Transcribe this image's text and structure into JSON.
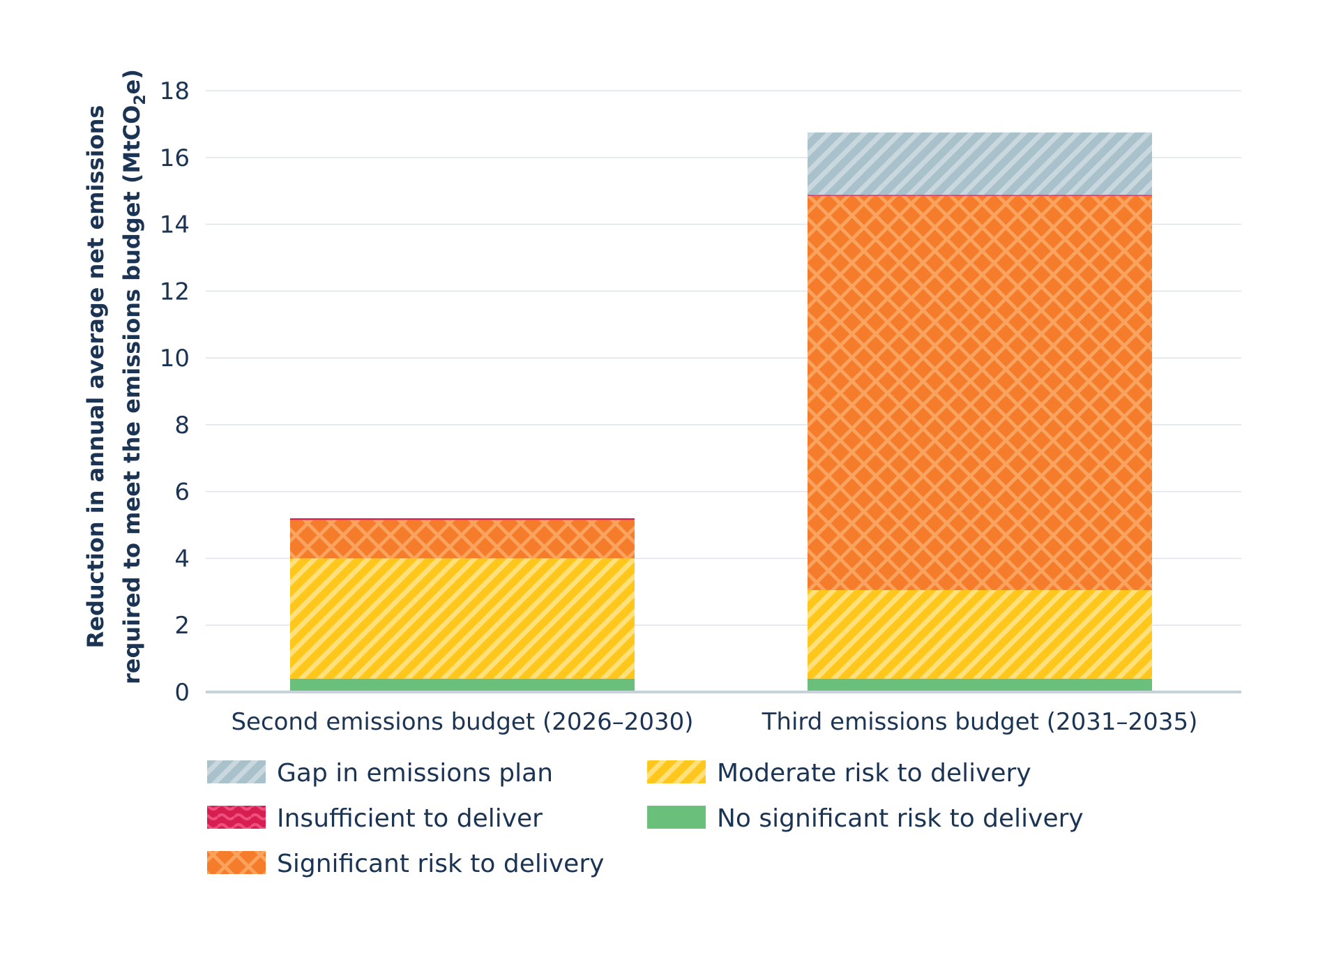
{
  "chart_data": {
    "type": "bar",
    "stacked": true,
    "categories": [
      "Second emissions budget (2026–2030)",
      "Third emissions budget (2031–2035)"
    ],
    "ylabel_line1": "Reduction in annual average net emissions",
    "ylabel_line2_prefix": "required to meet the emissions budget (MtCO",
    "ylabel_subscript": "2",
    "ylabel_line2_suffix": "e)",
    "ylim": [
      0,
      18
    ],
    "yticks": [
      0,
      2,
      4,
      6,
      8,
      10,
      12,
      14,
      16,
      18
    ],
    "grid": true,
    "legend_position": "bottom",
    "series": [
      {
        "name": "No significant risk to delivery",
        "values": [
          0.4,
          0.4
        ],
        "color": "#6abf7b",
        "pattern": "solid"
      },
      {
        "name": "Moderate risk to delivery",
        "values": [
          3.6,
          2.65
        ],
        "color": "#ffc61c",
        "pattern": "diagonal"
      },
      {
        "name": "Significant risk to delivery",
        "values": [
          1.15,
          11.8
        ],
        "color": "#f47c2a",
        "pattern": "crosshatch"
      },
      {
        "name": "Insufficient to deliver",
        "values": [
          0.05,
          0.03
        ],
        "color": "#e0245e",
        "pattern": "wave"
      },
      {
        "name": "Gap in emissions plan",
        "values": [
          0.0,
          1.87
        ],
        "color": "#a9c1cb",
        "pattern": "diagonal"
      }
    ],
    "legend_order": [
      "Gap in emissions plan",
      "Insufficient to deliver",
      "Significant risk to delivery",
      "Moderate risk to delivery",
      "No significant risk to delivery"
    ]
  }
}
